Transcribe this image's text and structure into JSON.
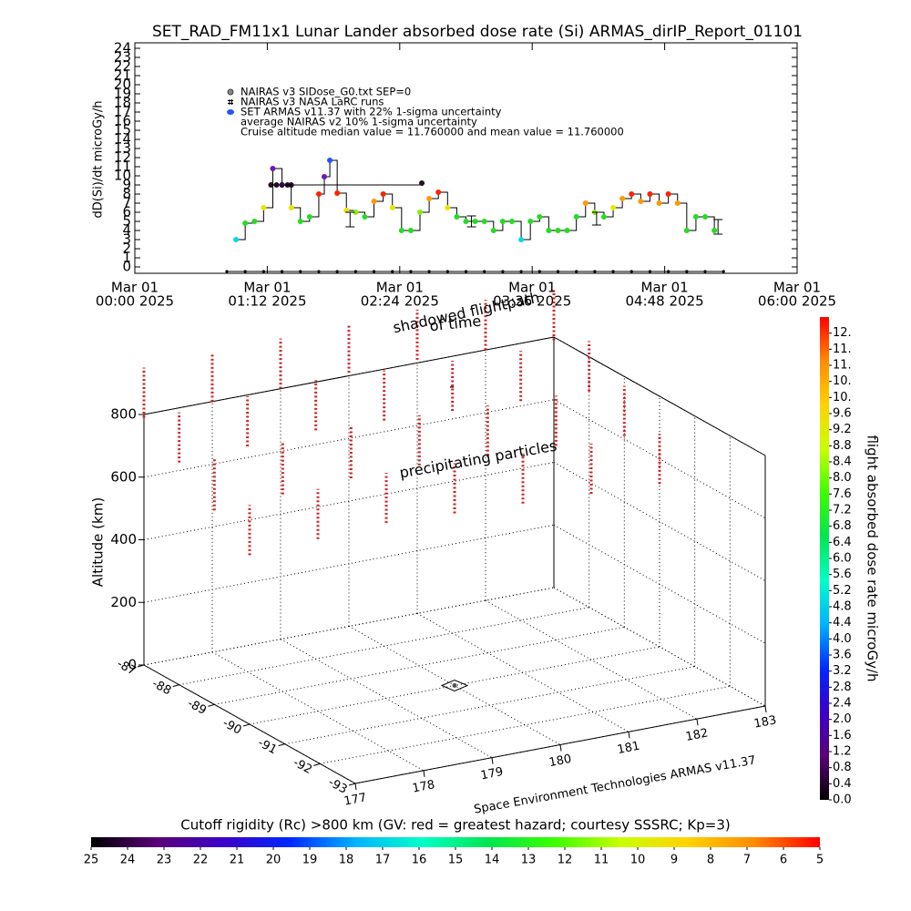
{
  "chart_data": [
    {
      "type": "line",
      "title": "SET_RAD_FM11x1  Lunar Lander absorbed dose rate (Si) ARMAS_dirIP_Report_01101",
      "ylabel": "dD(Si)/dt microGy/h",
      "xlim": [
        0,
        360
      ],
      "xticks": [
        {
          "value": 0,
          "label": [
            "Mar 01",
            "00:00 2025"
          ]
        },
        {
          "value": 72,
          "label": [
            "Mar 01",
            "01:12 2025"
          ]
        },
        {
          "value": 144,
          "label": [
            "Mar 01",
            "02:24 2025"
          ]
        },
        {
          "value": 216,
          "label": [
            "Mar 01",
            "03:36 2025"
          ]
        },
        {
          "value": 288,
          "label": [
            "Mar 01",
            "04:48 2025"
          ]
        },
        {
          "value": 360,
          "label": [
            "Mar 01",
            "06:00 2025"
          ]
        }
      ],
      "ylim": [
        -0.7,
        24.6
      ],
      "yticks": [
        0,
        1,
        2,
        3,
        4,
        5,
        6,
        7,
        8,
        9,
        10,
        11,
        12,
        13,
        14,
        15,
        16,
        17,
        18,
        19,
        20,
        21,
        22,
        23,
        24
      ],
      "series": [
        {
          "name": "NAIRAS v3 SIDose_G0.txt SEP=0",
          "color": "#201020",
          "x": [
            74,
            77,
            80,
            83,
            85,
            156
          ],
          "values": [
            9,
            9,
            9,
            9,
            9,
            9.2
          ]
        },
        {
          "name": "NAIRAS v3 NASA LaRC runs",
          "color": "#000000",
          "x": [
            50,
            60,
            70,
            80,
            90,
            100,
            110,
            120,
            130,
            140,
            150,
            160,
            170,
            180,
            190,
            200,
            210,
            220,
            230,
            240,
            250,
            260,
            270,
            280,
            290,
            300,
            310,
            320
          ],
          "values": [
            -0.5,
            -0.5,
            -0.5,
            -0.5,
            -0.5,
            -0.5,
            -0.5,
            -0.5,
            -0.5,
            -0.5,
            -0.5,
            -0.5,
            -0.5,
            -0.5,
            -0.5,
            -0.5,
            -0.5,
            -0.5,
            -0.5,
            -0.5,
            -0.5,
            -0.5,
            -0.5,
            -0.5,
            -0.5,
            -0.5,
            -0.5,
            -0.5
          ]
        },
        {
          "name": "SET ARMAS v11.37 with 22% 1-sigma uncertainty",
          "color": "#2255ff",
          "x": [
            55,
            60,
            65,
            70,
            75,
            80,
            85,
            90,
            95,
            100,
            103,
            106,
            110,
            115,
            120,
            125,
            130,
            135,
            140,
            145,
            150,
            155,
            160,
            165,
            170,
            175,
            180,
            185,
            190,
            195,
            200,
            205,
            210,
            215,
            220,
            225,
            230,
            235,
            240,
            245,
            250,
            255,
            260,
            265,
            270,
            275,
            280,
            285,
            290,
            295,
            300,
            305,
            310,
            315
          ],
          "values": [
            3.0,
            4.8,
            5.0,
            6.5,
            10.8,
            9.0,
            6.5,
            5.0,
            5.5,
            8.0,
            9.9,
            11.7,
            8.1,
            6.2,
            6.0,
            5.5,
            7.2,
            8.0,
            6.5,
            4.0,
            4.0,
            6.0,
            7.5,
            8.2,
            6.5,
            5.5,
            5.0,
            5.0,
            5.0,
            4.0,
            5.0,
            5.0,
            3.0,
            5.0,
            5.5,
            4.0,
            4.0,
            4.0,
            5.5,
            7.0,
            6.0,
            5.5,
            6.5,
            7.5,
            8.0,
            7.2,
            8.0,
            7.0,
            8.0,
            7.0,
            4.0,
            5.5,
            5.5,
            4.0
          ],
          "colors": [
            "#00d8e8",
            "#22dd22",
            "#22dd22",
            "#e6e600",
            "#6a1ab0",
            "#301040",
            "#e6e600",
            "#22dd22",
            "#22dd22",
            "#ff2200",
            "#6a1ab0",
            "#2255ff",
            "#ff2200",
            "#e6e600",
            "#88ee00",
            "#22dd22",
            "#ff9900",
            "#ff2200",
            "#e6e600",
            "#22dd22",
            "#22dd22",
            "#88ee00",
            "#ff9900",
            "#ff2200",
            "#e6e600",
            "#22dd22",
            "#22dd22",
            "#22dd22",
            "#22dd22",
            "#22dd22",
            "#22dd22",
            "#22dd22",
            "#00d8e8",
            "#22dd22",
            "#22dd22",
            "#22dd22",
            "#22dd22",
            "#22dd22",
            "#22dd22",
            "#ff9900",
            "#88ee00",
            "#22dd22",
            "#e6e600",
            "#ff9900",
            "#ff2200",
            "#ff9900",
            "#ff2200",
            "#ff9900",
            "#ff2200",
            "#ff9900",
            "#22dd22",
            "#22dd22",
            "#22dd22",
            "#22dd22"
          ]
        }
      ],
      "error_bars": {
        "name": "average NAIRAS v2 10% 1-sigma uncertainty",
        "x": [
          117,
          183,
          251,
          317
        ],
        "values": [
          5.2,
          5.0,
          5.3,
          4.4
        ],
        "errors": [
          0.8,
          0.6,
          0.7,
          0.8
        ]
      },
      "annotations": [
        "Cruise altitude median value = 11.760000 and mean value = 11.760000"
      ]
    },
    {
      "type": "scatter3d",
      "zlabel": "Altitude (km)",
      "xlim": [
        -87,
        -93
      ],
      "xticks": [
        -87,
        -88,
        -89,
        -90,
        -91,
        -92,
        -93
      ],
      "ylim": [
        177,
        183
      ],
      "yticks": [
        177,
        178,
        179,
        180,
        181,
        182,
        183
      ],
      "zlim": [
        0,
        800
      ],
      "zticks": [
        0,
        200,
        400,
        600,
        800
      ],
      "particles": {
        "color": "#d42020",
        "lon": [
          -87,
          -87,
          -87,
          -87,
          -87,
          -87,
          -87,
          -88,
          -88,
          -88,
          -88,
          -88,
          -88,
          -88,
          -89,
          -89,
          -89,
          -89,
          -89,
          -89,
          -89,
          -90,
          -90,
          -90,
          -90,
          -90,
          -90,
          -90
        ],
        "lat": [
          177,
          178,
          179,
          180,
          181,
          182,
          183,
          177,
          178,
          179,
          180,
          181,
          182,
          183,
          177,
          178,
          179,
          180,
          181,
          182,
          183,
          177,
          178,
          179,
          180,
          181,
          182,
          183
        ],
        "zlo": [
          790,
          800,
          800,
          810,
          810,
          800,
          790,
          710,
          720,
          730,
          720,
          710,
          700,
          690,
          620,
          630,
          640,
          640,
          630,
          620,
          610,
          540,
          550,
          560,
          550,
          540,
          530,
          520
        ],
        "zhi": [
          950,
          955,
          960,
          965,
          970,
          960,
          950,
          870,
          880,
          890,
          880,
          870,
          860,
          850,
          790,
          800,
          810,
          800,
          790,
          780,
          770,
          700,
          710,
          720,
          710,
          700,
          690,
          680
        ]
      },
      "flightpath": {
        "lon": -90,
        "lat": 180
      },
      "annotations": [
        "shadowed flightpath",
        "of time",
        "precipitating particles",
        "Space Environment Technologies ARMAS v11.37",
        "-"
      ],
      "colormap": [
        "#000000",
        "#5a0078",
        "#3c00c8",
        "#0028ff",
        "#00b4ff",
        "#00ffc8",
        "#00e650",
        "#3cff00",
        "#c8ff00",
        "#ffd200",
        "#ff8c00",
        "#ff0000"
      ],
      "colorbar": {
        "label": "flight absorbed dose rate microGy/h",
        "lim": [
          0,
          12
        ],
        "ticks": [
          {
            "value": 0,
            "label": "0.0"
          },
          0.4,
          0.8,
          1.2,
          1.6,
          {
            "value": 2,
            "label": "2.0"
          },
          2.4,
          2.8,
          3.2,
          3.6,
          {
            "value": 4,
            "label": "4.0"
          },
          4.4,
          4.8,
          5.2,
          5.6,
          {
            "value": 6,
            "label": "6.0"
          },
          6.4,
          6.8,
          7.2,
          7.6,
          {
            "value": 8,
            "label": "8.0"
          },
          8.4,
          8.8,
          9.2,
          9.6,
          {
            "value": 10,
            "label": "10."
          },
          {
            "value": 10.4,
            "label": "10."
          },
          {
            "value": 10.8,
            "label": "11."
          },
          {
            "value": 11.2,
            "label": "11."
          },
          {
            "value": 11.6,
            "label": "12."
          }
        ]
      },
      "cutoff_colorbar": {
        "title": "Cutoff rigidity (Rc) >800 km (GV: red = greatest hazard; courtesy SSSRC; Kp=3)",
        "lim": [
          25,
          5
        ],
        "ticks": [
          25,
          24,
          23,
          22,
          21,
          20,
          19,
          18,
          17,
          16,
          15,
          14,
          13,
          12,
          11,
          10,
          9,
          8,
          7,
          6,
          5
        ]
      }
    }
  ]
}
